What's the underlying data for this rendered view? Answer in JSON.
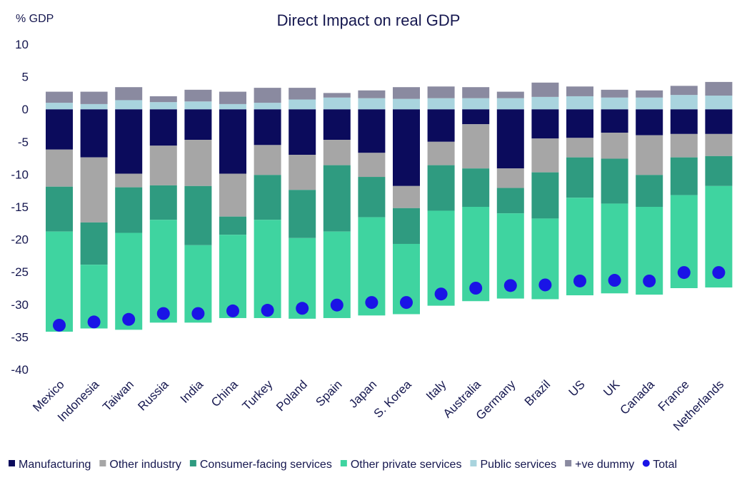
{
  "chart_data": {
    "type": "bar",
    "stacked": true,
    "title": "Direct Impact on real GDP",
    "ylabel": "% GDP",
    "ylim": [
      -40,
      10
    ],
    "yticks": [
      10,
      5,
      0,
      -5,
      -10,
      -15,
      -20,
      -25,
      -30,
      -35,
      -40
    ],
    "grid": false,
    "legend_position": "bottom",
    "categories": [
      "Mexico",
      "Indonesia",
      "Taiwan",
      "Russia",
      "India",
      "China",
      "Turkey",
      "Poland",
      "Spain",
      "Japan",
      "S. Korea",
      "Italy",
      "Australia",
      "Germany",
      "Brazil",
      "US",
      "UK",
      "Canada",
      "France",
      "Netherlands"
    ],
    "series": [
      {
        "name": "Manufacturing",
        "color": "#0b0b5c",
        "values": [
          -6.2,
          -7.4,
          -9.9,
          -5.6,
          -4.7,
          -9.9,
          -5.5,
          -7.0,
          -4.7,
          -6.7,
          -11.8,
          -5.0,
          -2.3,
          -9.1,
          -4.5,
          -4.4,
          -3.6,
          -4.0,
          -3.8,
          -3.8
        ]
      },
      {
        "name": "Other industry",
        "color": "#a6a6a6",
        "values": [
          -5.7,
          -10.0,
          -2.1,
          -6.1,
          -7.1,
          -6.6,
          -4.6,
          -5.4,
          -3.9,
          -3.7,
          -3.4,
          -3.6,
          -6.8,
          -3.0,
          -5.2,
          -3.0,
          -4.0,
          -6.1,
          -3.6,
          -3.4
        ]
      },
      {
        "name": "Consumer-facing services",
        "color": "#2f9b80",
        "values": [
          -6.9,
          -6.5,
          -7.0,
          -5.3,
          -9.1,
          -2.8,
          -6.9,
          -7.4,
          -10.2,
          -6.2,
          -5.5,
          -7.0,
          -5.9,
          -3.9,
          -7.1,
          -6.2,
          -6.9,
          -4.9,
          -5.8,
          -4.6
        ]
      },
      {
        "name": "Other private services",
        "color": "#3fd4a0",
        "values": [
          -15.4,
          -9.8,
          -14.9,
          -15.8,
          -11.9,
          -12.8,
          -15.1,
          -12.4,
          -13.3,
          -15.1,
          -10.8,
          -14.6,
          -14.5,
          -13.1,
          -12.4,
          -15.0,
          -13.8,
          -13.5,
          -14.3,
          -15.6
        ]
      },
      {
        "name": "Public services",
        "color": "#a9d4de",
        "values": [
          1.0,
          0.8,
          1.4,
          1.1,
          1.2,
          0.8,
          1.0,
          1.5,
          1.8,
          1.7,
          1.6,
          1.7,
          1.7,
          1.7,
          1.9,
          2.0,
          1.8,
          1.8,
          2.2,
          2.1
        ]
      },
      {
        "name": "+ve dummy",
        "color": "#8a8aa0",
        "values": [
          1.7,
          1.9,
          2.0,
          0.9,
          1.8,
          1.9,
          2.3,
          1.8,
          0.7,
          1.2,
          1.8,
          1.8,
          1.7,
          1.0,
          2.2,
          1.5,
          1.2,
          1.1,
          1.4,
          2.1
        ]
      }
    ],
    "total": {
      "name": "Total",
      "color": "#1a14e6",
      "values": [
        -33.2,
        -32.7,
        -32.3,
        -31.4,
        -31.4,
        -31.0,
        -30.9,
        -30.6,
        -30.1,
        -29.7,
        -29.7,
        -28.4,
        -27.5,
        -27.1,
        -27.0,
        -26.4,
        -26.3,
        -26.4,
        -25.1,
        -25.1
      ]
    }
  }
}
